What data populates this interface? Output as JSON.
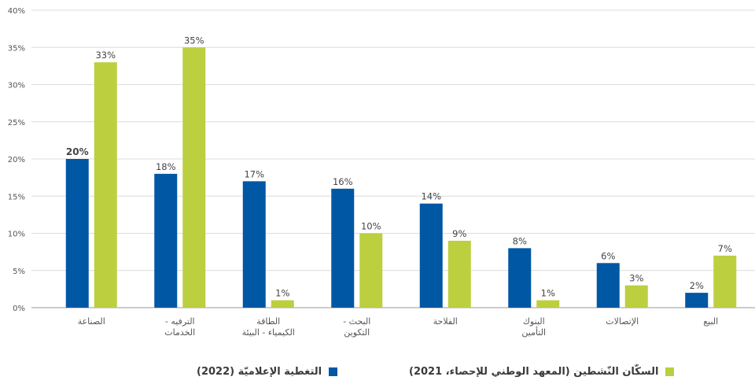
{
  "chart_data": {
    "type": "bar",
    "categories": [
      [
        "الصناعة"
      ],
      [
        "الترفيه -",
        "الخدمات"
      ],
      [
        "الطاقة",
        "الكيمياء - البيئة"
      ],
      [
        "البحث -",
        "التكوين"
      ],
      [
        "الفلاحة"
      ],
      [
        "البنوك",
        "التأمين"
      ],
      [
        "الإتصالات"
      ],
      [
        "البيع"
      ]
    ],
    "series": [
      {
        "name": "التغطية الإعلاميّة (2022)",
        "color": "#0057a3",
        "values": [
          20,
          18,
          17,
          16,
          14,
          8,
          6,
          2
        ]
      },
      {
        "name": "السكّان النّشطين (المعهد الوطني للإحصاء، 2021)",
        "color": "#bccf3f",
        "values": [
          33,
          35,
          1,
          10,
          9,
          1,
          3,
          7
        ]
      }
    ],
    "value_suffix": "%",
    "highlight": {
      "series": 0,
      "index": 0
    },
    "ylim": [
      0,
      40
    ],
    "yticks": [
      0,
      5,
      10,
      15,
      20,
      25,
      30,
      35,
      40
    ],
    "ytick_labels": [
      "0%",
      "5%",
      "10%",
      "15%",
      "20%",
      "25%",
      "30%",
      "35%",
      "40%"
    ],
    "grid": true,
    "legend_position": "bottom"
  }
}
